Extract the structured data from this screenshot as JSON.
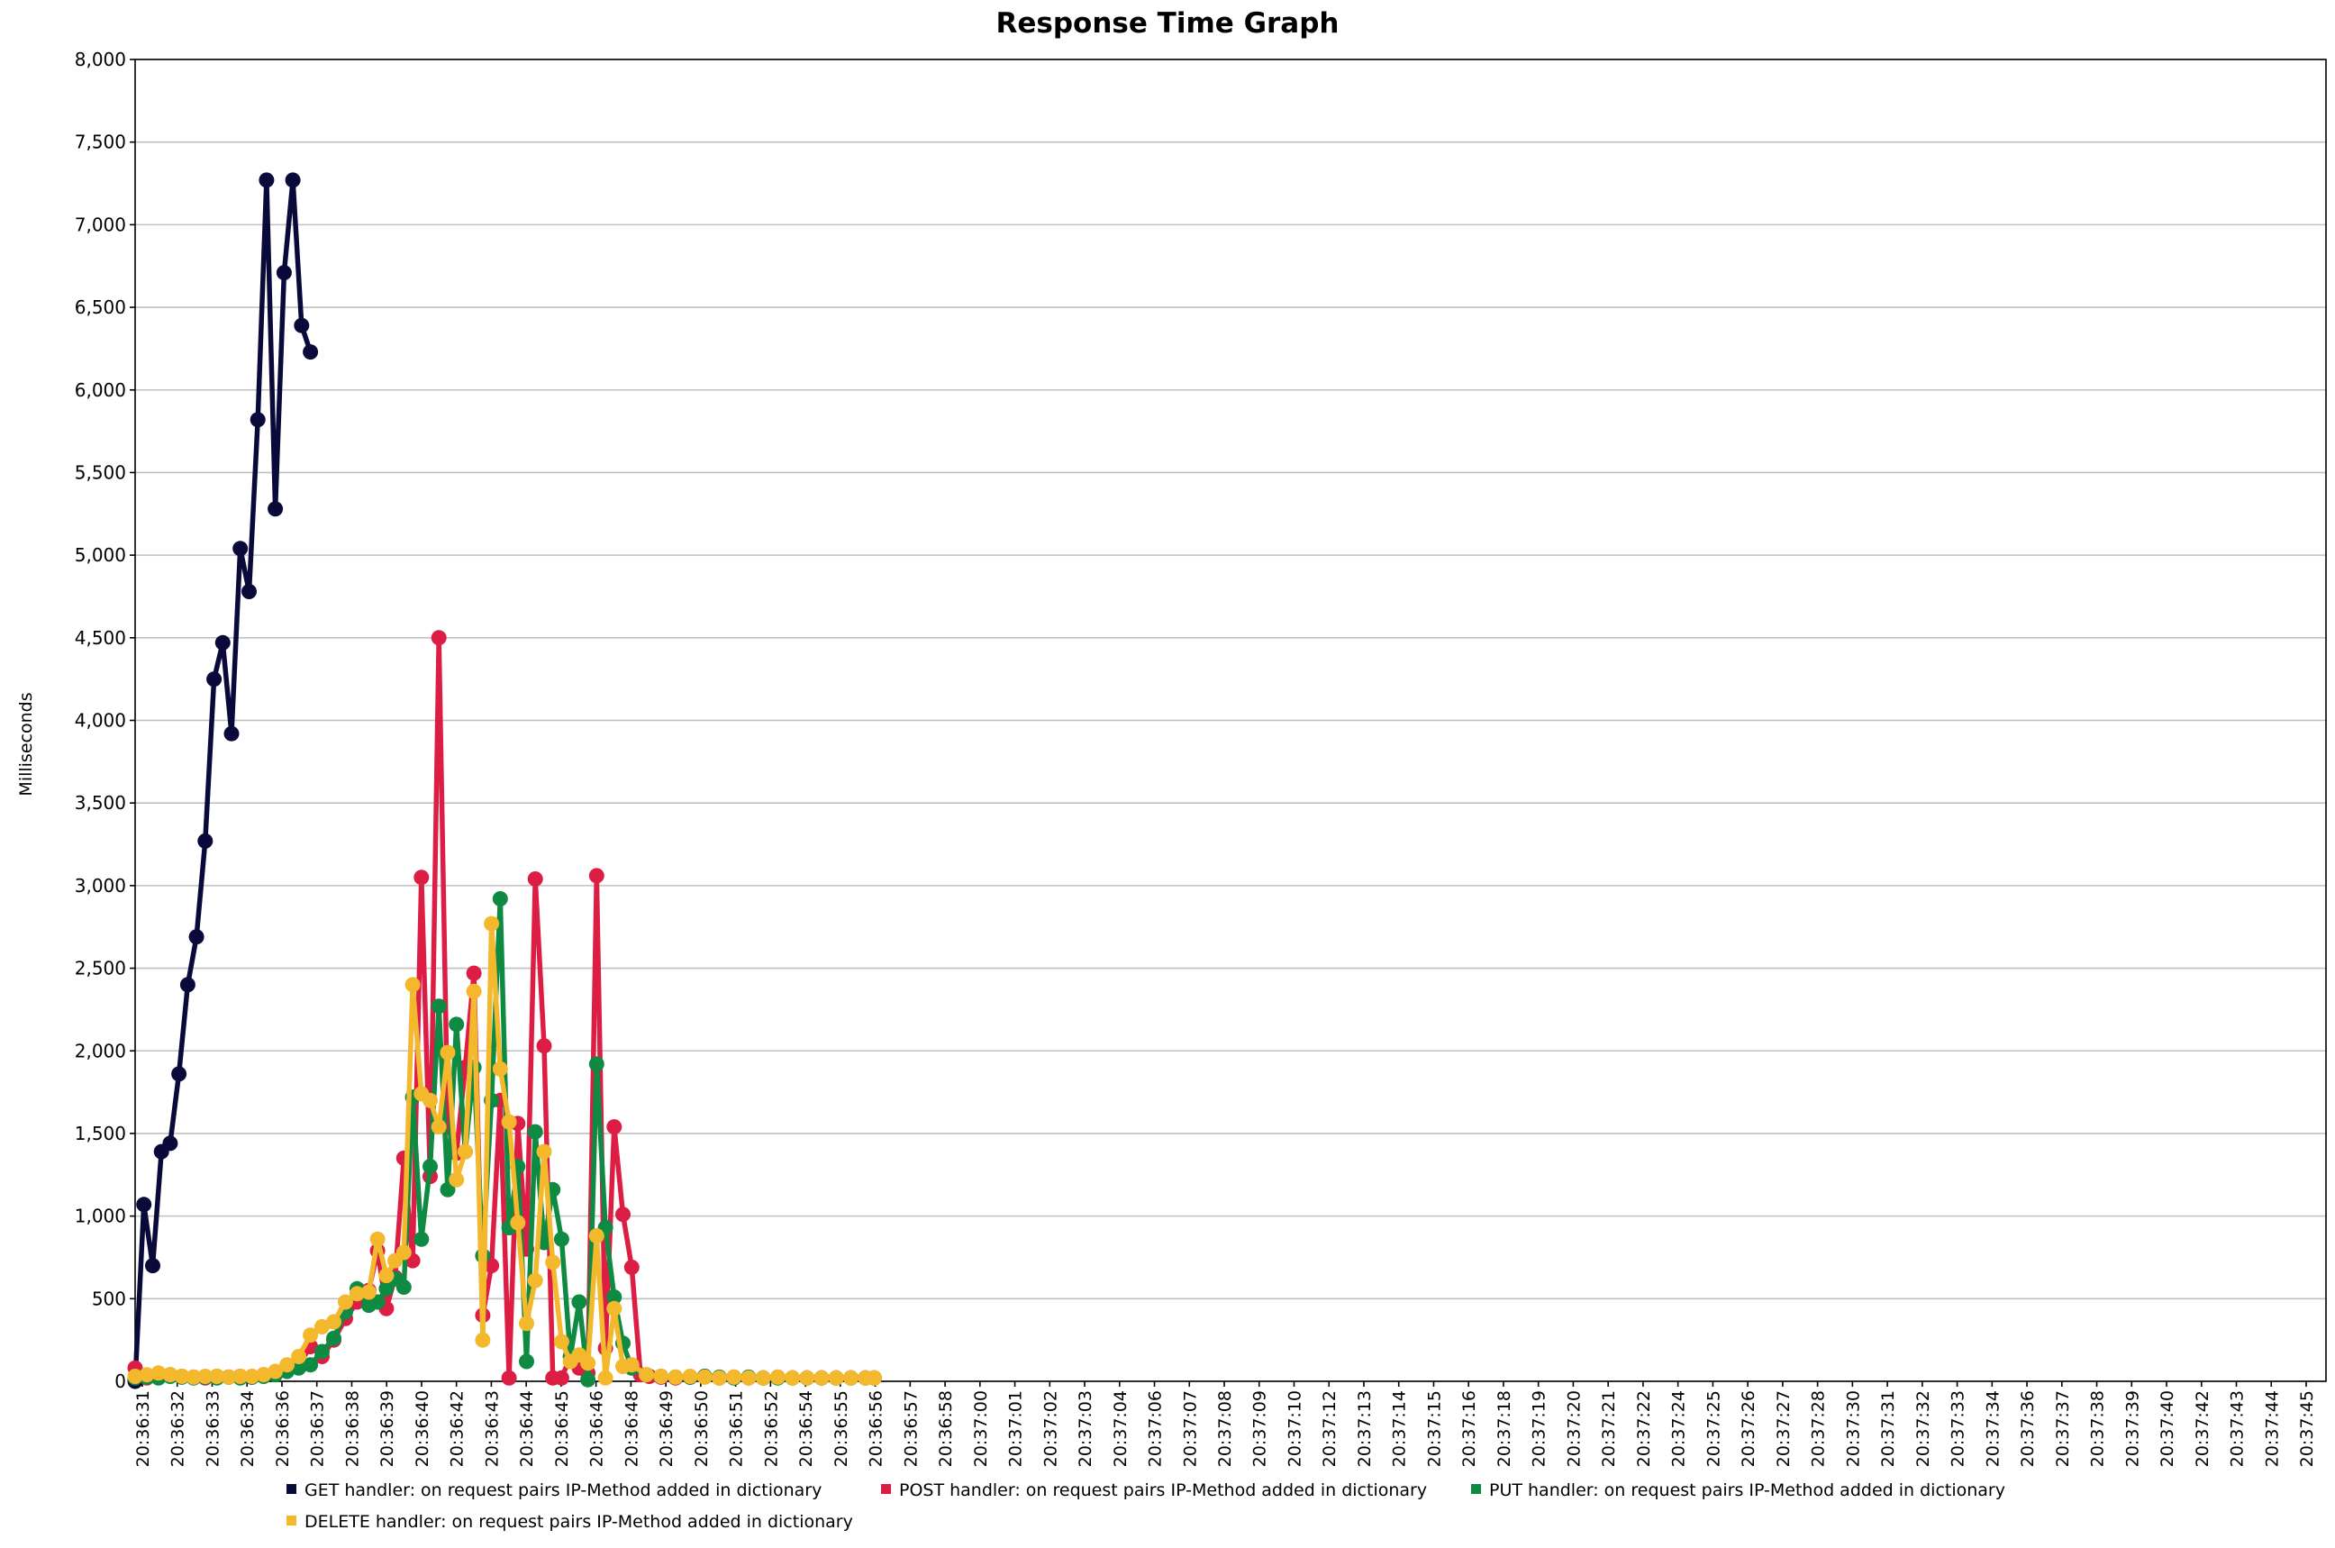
{
  "chart_data": {
    "type": "line",
    "title": "Response Time Graph",
    "xlabel": "",
    "ylabel": "Milliseconds",
    "ylim": [
      0,
      8000
    ],
    "yticks": [
      "0",
      "500",
      "1,000",
      "1,500",
      "2,000",
      "2,500",
      "3,000",
      "3,500",
      "4,000",
      "4,500",
      "5,000",
      "5,500",
      "6,000",
      "6,500",
      "7,000",
      "7,500",
      "8,000"
    ],
    "ytick_values": [
      0,
      500,
      1000,
      1500,
      2000,
      2500,
      3000,
      3500,
      4000,
      4500,
      5000,
      5500,
      6000,
      6500,
      7000,
      7500,
      8000
    ],
    "xlim": [
      "20:36:31",
      "20:37:46"
    ],
    "xticks": [
      "20:36:31",
      "20:36:32",
      "20:36:33",
      "20:36:34",
      "20:36:36",
      "20:36:37",
      "20:36:38",
      "20:36:39",
      "20:36:40",
      "20:36:42",
      "20:36:43",
      "20:36:44",
      "20:36:45",
      "20:36:46",
      "20:36:48",
      "20:36:49",
      "20:36:50",
      "20:36:51",
      "20:36:52",
      "20:36:54",
      "20:36:55",
      "20:36:56",
      "20:36:57",
      "20:36:58",
      "20:37:00",
      "20:37:01",
      "20:37:02",
      "20:37:03",
      "20:37:04",
      "20:37:06",
      "20:37:07",
      "20:37:08",
      "20:37:09",
      "20:37:10",
      "20:37:12",
      "20:37:13",
      "20:37:14",
      "20:37:15",
      "20:37:16",
      "20:37:18",
      "20:37:19",
      "20:37:20",
      "20:37:21",
      "20:37:22",
      "20:37:24",
      "20:37:25",
      "20:37:26",
      "20:37:27",
      "20:37:28",
      "20:37:30",
      "20:37:31",
      "20:37:32",
      "20:37:33",
      "20:37:34",
      "20:37:36",
      "20:37:37",
      "20:37:38",
      "20:37:39",
      "20:37:40",
      "20:37:42",
      "20:37:43",
      "20:37:44",
      "20:37:45"
    ],
    "grid": true,
    "legend_position": "bottom",
    "series": [
      {
        "name": "GET handler: on request pairs IP-Method added in dictionary",
        "color": "#0a0a3a",
        "x": [
          "20:36:31.00",
          "20:36:31.30",
          "20:36:31.60",
          "20:36:31.90",
          "20:36:32.20",
          "20:36:32.50",
          "20:36:32.80",
          "20:36:33.10",
          "20:36:33.40",
          "20:36:33.70",
          "20:36:34.00",
          "20:36:34.30",
          "20:36:34.60",
          "20:36:34.90",
          "20:36:35.20",
          "20:36:35.50",
          "20:36:35.80",
          "20:36:36.10",
          "20:36:36.40",
          "20:36:36.70",
          "20:36:37.00"
        ],
        "values": [
          0,
          1070,
          700,
          1390,
          1440,
          1860,
          2400,
          2690,
          3270,
          4250,
          4470,
          3920,
          5040,
          4780,
          5820,
          7270,
          5280,
          6710,
          7270,
          6390,
          6230
        ]
      },
      {
        "name": "POST handler: on request pairs IP-Method added in dictionary",
        "color": "#dc1e45",
        "x": [
          "20:36:31.00",
          "20:36:31.40",
          "20:36:31.80",
          "20:36:32.20",
          "20:36:32.60",
          "20:36:33.00",
          "20:36:33.40",
          "20:36:33.80",
          "20:36:34.20",
          "20:36:34.60",
          "20:36:35.00",
          "20:36:35.40",
          "20:36:35.80",
          "20:36:36.20",
          "20:36:36.60",
          "20:36:37.00",
          "20:36:37.40",
          "20:36:37.80",
          "20:36:38.20",
          "20:36:38.60",
          "20:36:39.00",
          "20:36:39.30",
          "20:36:39.60",
          "20:36:39.90",
          "20:36:40.20",
          "20:36:40.50",
          "20:36:40.80",
          "20:36:41.10",
          "20:36:41.40",
          "20:36:41.70",
          "20:36:42.00",
          "20:36:42.30",
          "20:36:42.60",
          "20:36:42.90",
          "20:36:43.20",
          "20:36:43.50",
          "20:36:43.80",
          "20:36:44.10",
          "20:36:44.40",
          "20:36:44.70",
          "20:36:45.00",
          "20:36:45.30",
          "20:36:45.60",
          "20:36:45.90",
          "20:36:46.20",
          "20:36:46.50",
          "20:36:46.80",
          "20:36:47.10",
          "20:36:47.40",
          "20:36:47.70",
          "20:36:48.00",
          "20:36:48.30",
          "20:36:48.60",
          "20:36:49.00",
          "20:36:49.50",
          "20:36:50.00",
          "20:36:50.50",
          "20:36:51.00",
          "20:36:51.50",
          "20:36:52.00",
          "20:36:52.50",
          "20:36:53.00",
          "20:36:53.50",
          "20:36:54.00",
          "20:36:54.50",
          "20:36:55.00",
          "20:36:55.50",
          "20:36:56.00",
          "20:36:56.30"
        ],
        "values": [
          80,
          20,
          30,
          40,
          30,
          25,
          20,
          30,
          25,
          30,
          25,
          40,
          50,
          80,
          100,
          210,
          150,
          250,
          380,
          480,
          550,
          790,
          440,
          630,
          1350,
          730,
          3050,
          1240,
          4500,
          1540,
          1380,
          1900,
          2470,
          400,
          700,
          1700,
          20,
          1560,
          800,
          3040,
          2030,
          20,
          20,
          150,
          80,
          50,
          3060,
          200,
          1540,
          1010,
          690,
          40,
          30,
          25,
          20,
          25,
          30,
          20,
          25,
          20,
          20,
          25,
          20,
          20,
          20,
          20,
          20,
          20,
          20
        ]
      },
      {
        "name": "PUT handler: on request pairs IP-Method added in dictionary",
        "color": "#0e8a43",
        "x": [
          "20:36:31.00",
          "20:36:31.40",
          "20:36:31.80",
          "20:36:32.20",
          "20:36:32.60",
          "20:36:33.00",
          "20:36:33.40",
          "20:36:33.80",
          "20:36:34.20",
          "20:36:34.60",
          "20:36:35.00",
          "20:36:35.40",
          "20:36:35.80",
          "20:36:36.20",
          "20:36:36.60",
          "20:36:37.00",
          "20:36:37.40",
          "20:36:37.80",
          "20:36:38.20",
          "20:36:38.60",
          "20:36:39.00",
          "20:36:39.30",
          "20:36:39.60",
          "20:36:39.90",
          "20:36:40.20",
          "20:36:40.50",
          "20:36:40.80",
          "20:36:41.10",
          "20:36:41.40",
          "20:36:41.70",
          "20:36:42.00",
          "20:36:42.30",
          "20:36:42.60",
          "20:36:42.90",
          "20:36:43.20",
          "20:36:43.50",
          "20:36:43.80",
          "20:36:44.10",
          "20:36:44.40",
          "20:36:44.70",
          "20:36:45.00",
          "20:36:45.30",
          "20:36:45.60",
          "20:36:45.90",
          "20:36:46.20",
          "20:36:46.50",
          "20:36:46.80",
          "20:36:47.10",
          "20:36:47.40",
          "20:36:47.70",
          "20:36:48.00",
          "20:36:48.50",
          "20:36:49.00",
          "20:36:49.50",
          "20:36:50.00",
          "20:36:50.50",
          "20:36:51.00",
          "20:36:51.50",
          "20:36:52.00",
          "20:36:52.50",
          "20:36:53.00",
          "20:36:53.50",
          "20:36:54.00",
          "20:36:54.50",
          "20:36:55.00",
          "20:36:55.50",
          "20:36:56.00",
          "20:36:56.30"
        ],
        "values": [
          20,
          25,
          20,
          30,
          25,
          20,
          25,
          20,
          25,
          20,
          25,
          30,
          40,
          60,
          80,
          100,
          180,
          260,
          420,
          560,
          460,
          480,
          560,
          620,
          570,
          1720,
          860,
          1300,
          2270,
          1160,
          2160,
          1390,
          1900,
          760,
          1700,
          2920,
          930,
          1300,
          120,
          1510,
          840,
          1160,
          860,
          150,
          480,
          10,
          1920,
          930,
          510,
          230,
          80,
          40,
          30,
          25,
          25,
          30,
          25,
          20,
          25,
          20,
          20,
          20,
          20,
          20,
          20,
          20,
          20,
          20
        ]
      },
      {
        "name": "DELETE handler: on request pairs IP-Method added in dictionary",
        "color": "#f4b82c",
        "x": [
          "20:36:31.00",
          "20:36:31.40",
          "20:36:31.80",
          "20:36:32.20",
          "20:36:32.60",
          "20:36:33.00",
          "20:36:33.40",
          "20:36:33.80",
          "20:36:34.20",
          "20:36:34.60",
          "20:36:35.00",
          "20:36:35.40",
          "20:36:35.80",
          "20:36:36.20",
          "20:36:36.60",
          "20:36:37.00",
          "20:36:37.40",
          "20:36:37.80",
          "20:36:38.20",
          "20:36:38.60",
          "20:36:39.00",
          "20:36:39.30",
          "20:36:39.60",
          "20:36:39.90",
          "20:36:40.20",
          "20:36:40.50",
          "20:36:40.80",
          "20:36:41.10",
          "20:36:41.40",
          "20:36:41.70",
          "20:36:42.00",
          "20:36:42.30",
          "20:36:42.60",
          "20:36:42.90",
          "20:36:43.20",
          "20:36:43.50",
          "20:36:43.80",
          "20:36:44.10",
          "20:36:44.40",
          "20:36:44.70",
          "20:36:45.00",
          "20:36:45.30",
          "20:36:45.60",
          "20:36:45.90",
          "20:36:46.20",
          "20:36:46.50",
          "20:36:46.80",
          "20:36:47.10",
          "20:36:47.40",
          "20:36:47.70",
          "20:36:48.00",
          "20:36:48.50",
          "20:36:49.00",
          "20:36:49.50",
          "20:36:50.00",
          "20:36:50.50",
          "20:36:51.00",
          "20:36:51.50",
          "20:36:52.00",
          "20:36:52.50",
          "20:36:53.00",
          "20:36:53.50",
          "20:36:54.00",
          "20:36:54.50",
          "20:36:55.00",
          "20:36:55.50",
          "20:36:56.00",
          "20:36:56.30"
        ],
        "values": [
          30,
          40,
          50,
          40,
          30,
          25,
          30,
          30,
          25,
          30,
          30,
          40,
          60,
          100,
          150,
          280,
          330,
          360,
          480,
          530,
          540,
          860,
          640,
          730,
          780,
          2400,
          1740,
          1700,
          1540,
          1990,
          1220,
          1390,
          2360,
          250,
          2770,
          1890,
          1570,
          960,
          350,
          610,
          1390,
          720,
          240,
          120,
          160,
          110,
          880,
          20,
          440,
          90,
          100,
          40,
          30,
          25,
          30,
          25,
          20,
          25,
          20,
          20,
          25,
          20,
          20,
          20,
          20,
          20,
          20,
          20
        ]
      }
    ]
  }
}
